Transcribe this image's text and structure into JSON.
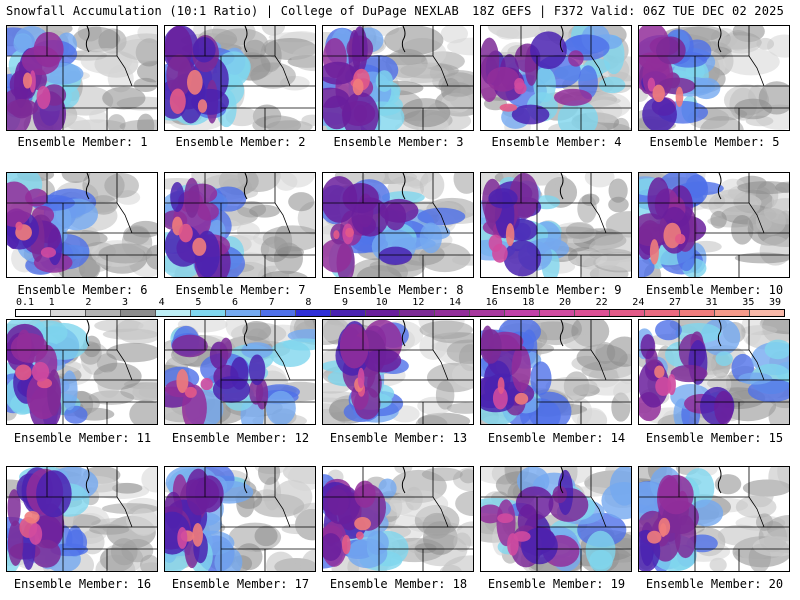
{
  "header": {
    "left": "Snowfall Accumulation (10:1 Ratio) | College of DuPage NEXLAB",
    "right": "18Z GEFS | F372 Valid: 06Z TUE DEC 02 2025"
  },
  "scale": {
    "labels": [
      "0.1",
      "1",
      "2",
      "3",
      "4",
      "5",
      "6",
      "7",
      "8",
      "9",
      "10",
      "12",
      "14",
      "16",
      "18",
      "20",
      "22",
      "24",
      "27",
      "31",
      "35",
      "39"
    ],
    "colors": [
      "#ffffff",
      "#d9d9d9",
      "#b3b3b3",
      "#8c8c8c",
      "#bdeef5",
      "#7fd6ee",
      "#74a9f0",
      "#4f70e8",
      "#2f2fd8",
      "#4a22b0",
      "#6a1f9c",
      "#7d2a96",
      "#922e9a",
      "#a8389f",
      "#c040a8",
      "#d04aa0",
      "#dc4f94",
      "#e35a88",
      "#ea6a80",
      "#f07c7c",
      "#f59a8a",
      "#f8b8a8"
    ]
  },
  "panels": [
    {
      "label": "Ensemble Member: 1",
      "focus": "west"
    },
    {
      "label": "Ensemble Member: 2",
      "focus": "west"
    },
    {
      "label": "Ensemble Member: 3",
      "focus": "west"
    },
    {
      "label": "Ensemble Member: 4",
      "focus": "broad"
    },
    {
      "label": "Ensemble Member: 5",
      "focus": "west"
    },
    {
      "label": "Ensemble Member: 6",
      "focus": "west"
    },
    {
      "label": "Ensemble Member: 7",
      "focus": "west"
    },
    {
      "label": "Ensemble Member: 8",
      "focus": "band"
    },
    {
      "label": "Ensemble Member: 9",
      "focus": "west"
    },
    {
      "label": "Ensemble Member: 10",
      "focus": "west"
    },
    {
      "label": "Ensemble Member: 11",
      "focus": "west"
    },
    {
      "label": "Ensemble Member: 12",
      "focus": "broad"
    },
    {
      "label": "Ensemble Member: 13",
      "focus": "center"
    },
    {
      "label": "Ensemble Member: 14",
      "focus": "west"
    },
    {
      "label": "Ensemble Member: 15",
      "focus": "broad"
    },
    {
      "label": "Ensemble Member: 16",
      "focus": "west"
    },
    {
      "label": "Ensemble Member: 17",
      "focus": "west"
    },
    {
      "label": "Ensemble Member: 18",
      "focus": "west"
    },
    {
      "label": "Ensemble Member: 19",
      "focus": "broad"
    },
    {
      "label": "Ensemble Member: 20",
      "focus": "west"
    }
  ]
}
